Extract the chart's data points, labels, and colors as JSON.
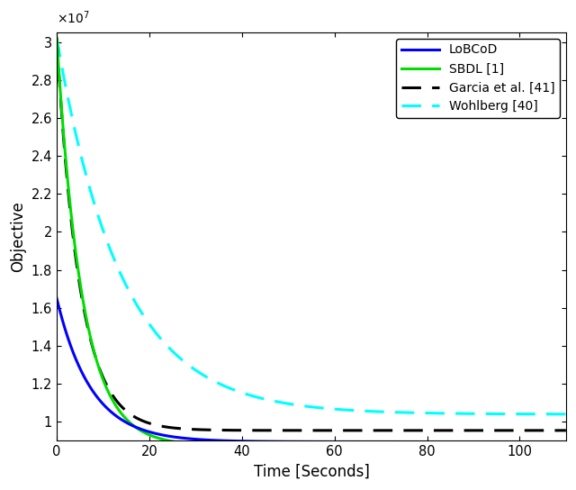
{
  "title": "",
  "xlabel": "Time [Seconds]",
  "ylabel": "Objective",
  "xlim": [
    0,
    110
  ],
  "ylim": [
    9000000.0,
    30500000.0
  ],
  "yticks": [
    10000000.0,
    12000000.0,
    14000000.0,
    16000000.0,
    18000000.0,
    20000000.0,
    22000000.0,
    24000000.0,
    26000000.0,
    28000000.0,
    30000000.0
  ],
  "xticks": [
    0,
    20,
    40,
    60,
    80,
    100
  ],
  "lines": {
    "lobcod": {
      "label": "LoBCoD",
      "color": "#0000FF",
      "linestyle": "solid",
      "linewidth": 2.2,
      "y0": 16500000.0,
      "yinf": 8950000.0,
      "tau": 7.5
    },
    "sbdl": {
      "label": "SBDL [1]",
      "color": "#00DD00",
      "linestyle": "solid",
      "linewidth": 2.2,
      "y0": 30200000.0,
      "yinf": 8750000.0,
      "tau": 5.5
    },
    "garcia": {
      "label": "Garcia et al. [41]",
      "color": "#000000",
      "linestyle": "dashed",
      "linewidth": 2.2,
      "y0": 30200000.0,
      "yinf": 9550000.0,
      "tau": 5.0
    },
    "wohlberg": {
      "label": "Wohlberg [40]",
      "color": "#00FFFF",
      "linestyle": "dashed",
      "linewidth": 2.2,
      "y0": 30200000.0,
      "yinf": 10400000.0,
      "tau": 14.0
    }
  },
  "legend_loc": "upper right",
  "legend_fontsize": 10,
  "tick_fontsize": 10.5,
  "label_fontsize": 12,
  "background_color": "#ffffff"
}
